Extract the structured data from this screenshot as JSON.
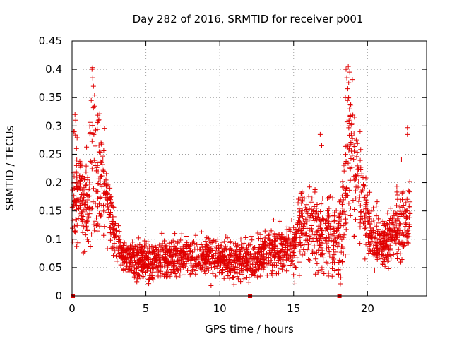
{
  "chart_data": {
    "type": "scatter",
    "title": "Day 282 of 2016, SRMTID for receiver p001",
    "xlabel": "GPS time / hours",
    "ylabel": "SRMTID / TECUs",
    "xlim": [
      0,
      24
    ],
    "ylim": [
      0,
      0.45
    ],
    "x_ticks": [
      0,
      5,
      10,
      15,
      20
    ],
    "x_tick_labels": [
      "0",
      "5",
      "10",
      "15",
      "20"
    ],
    "y_ticks": [
      0,
      0.05,
      0.1,
      0.15,
      0.2,
      0.25,
      0.3,
      0.35,
      0.4,
      0.45
    ],
    "y_tick_labels": [
      "0",
      "0.05",
      "0.1",
      "0.15",
      "0.2",
      "0.25",
      "0.3",
      "0.35",
      "0.4",
      "0.45"
    ],
    "grid": true,
    "marker": "+",
    "color": "#e00000",
    "series": [
      {
        "name": "SRMTID",
        "envelope": {
          "hours": [
            0.0,
            0.3,
            0.7,
            1.0,
            1.3,
            1.5,
            1.8,
            2.2,
            2.6,
            3.0,
            3.5,
            4.5,
            6.0,
            8.0,
            10.0,
            12.0,
            13.5,
            14.5,
            15.0,
            15.5,
            16.5,
            17.5,
            18.0,
            18.3,
            18.6,
            18.9,
            19.3,
            19.8,
            20.3,
            21.0,
            21.8,
            22.5,
            22.9
          ],
          "center": [
            0.16,
            0.19,
            0.17,
            0.15,
            0.21,
            0.23,
            0.2,
            0.19,
            0.14,
            0.1,
            0.07,
            0.06,
            0.065,
            0.07,
            0.068,
            0.06,
            0.08,
            0.085,
            0.09,
            0.13,
            0.12,
            0.11,
            0.1,
            0.12,
            0.23,
            0.26,
            0.2,
            0.15,
            0.11,
            0.09,
            0.11,
            0.13,
            0.15
          ],
          "spread": [
            0.06,
            0.07,
            0.06,
            0.08,
            0.1,
            0.1,
            0.08,
            0.06,
            0.04,
            0.03,
            0.025,
            0.025,
            0.025,
            0.025,
            0.025,
            0.025,
            0.03,
            0.035,
            0.04,
            0.05,
            0.06,
            0.06,
            0.05,
            0.08,
            0.1,
            0.1,
            0.08,
            0.05,
            0.04,
            0.03,
            0.04,
            0.05,
            0.06
          ]
        },
        "points": [
          [
            0.1,
            0.29
          ],
          [
            0.15,
            0.29
          ],
          [
            0.2,
            0.32
          ],
          [
            0.25,
            0.31
          ],
          [
            0.3,
            0.26
          ],
          [
            1.35,
            0.4
          ],
          [
            1.4,
            0.403
          ],
          [
            1.45,
            0.37
          ],
          [
            1.4,
            0.385
          ],
          [
            1.3,
            0.345
          ],
          [
            1.5,
            0.335
          ],
          [
            1.2,
            0.3
          ],
          [
            18.55,
            0.4
          ],
          [
            18.7,
            0.405
          ],
          [
            18.8,
            0.395
          ],
          [
            18.6,
            0.385
          ],
          [
            18.5,
            0.35
          ],
          [
            18.65,
            0.345
          ],
          [
            18.75,
            0.31
          ],
          [
            16.8,
            0.285
          ],
          [
            16.9,
            0.265
          ],
          [
            22.7,
            0.297
          ],
          [
            22.7,
            0.285
          ],
          [
            22.3,
            0.24
          ],
          [
            19.5,
            0.29
          ],
          [
            0.05,
            0.095
          ]
        ],
        "zero_markers": [
          0.05,
          12.05,
          18.1
        ]
      }
    ]
  }
}
